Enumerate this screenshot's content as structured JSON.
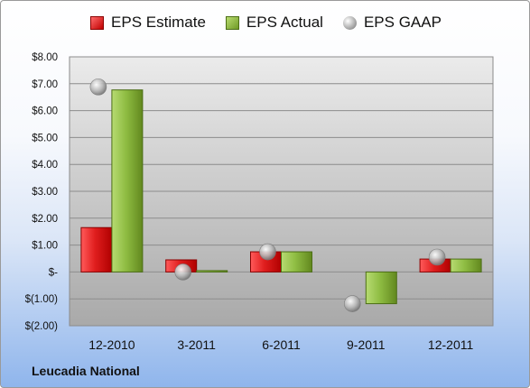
{
  "company_label": "Leucadia National",
  "legend": [
    {
      "label": "EPS Estimate",
      "icon": "red-square"
    },
    {
      "label": "EPS Actual",
      "icon": "green-square"
    },
    {
      "label": "EPS GAAP",
      "icon": "gray-sphere"
    }
  ],
  "colors": {
    "estimate": "#d42020",
    "actual": "#8ab83e",
    "gaap": "#a0a0a0"
  },
  "chart_data": {
    "type": "bar",
    "categories": [
      "12-2010",
      "3-2011",
      "6-2011",
      "9-2011",
      "12-2011"
    ],
    "series": [
      {
        "name": "EPS Estimate",
        "values": [
          1.65,
          0.45,
          0.75,
          null,
          0.48
        ]
      },
      {
        "name": "EPS Actual",
        "values": [
          6.77,
          0.05,
          0.75,
          -1.18,
          0.48
        ]
      },
      {
        "name": "EPS GAAP",
        "marker": "sphere",
        "values": [
          6.88,
          0.0,
          0.75,
          -1.18,
          0.55
        ]
      }
    ],
    "ylim": [
      -2,
      8
    ],
    "yticks": [
      8,
      7,
      6,
      5,
      4,
      3,
      2,
      1,
      0,
      -1,
      -2
    ],
    "ytick_labels": [
      "$8.00",
      "$7.00",
      "$6.00",
      "$5.00",
      "$4.00",
      "$3.00",
      "$2.00",
      "$1.00",
      "$-",
      "$(1.00)",
      "$(2.00)"
    ],
    "grid": true,
    "legend_position": "top"
  }
}
